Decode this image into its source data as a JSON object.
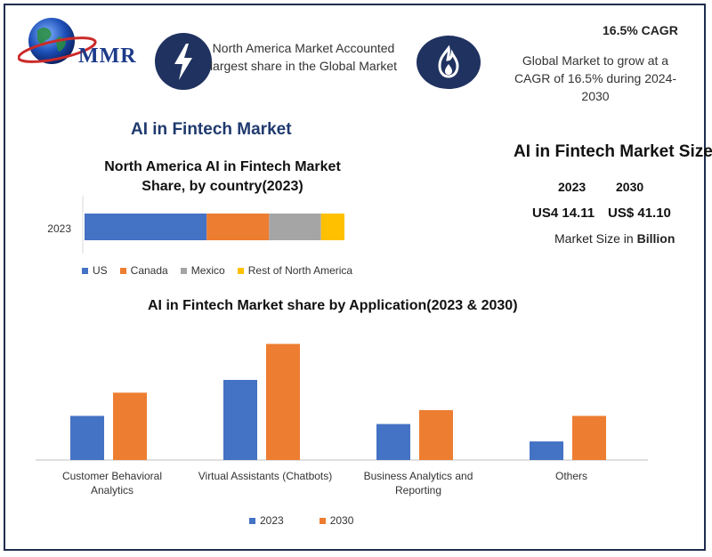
{
  "brand": {
    "logo_text": "MMR"
  },
  "header": {
    "left_text": "North America Market Accounted largest share in the Global Market",
    "cagr_label": "16.5% CAGR",
    "right_text": "Global Market to grow at a CAGR of 16.5% during 2024-2030"
  },
  "main_title": "AI in Fintech Market",
  "market_size": {
    "title": "AI in Fintech Market Size",
    "year_a": "2023",
    "year_b": "2030",
    "value_a": "US4 14.11",
    "value_b": "US$ 41.10",
    "note_prefix": "Market Size in ",
    "note_unit": "Billion"
  },
  "colors": {
    "navy": "#1f3260",
    "blue": "#4472c4",
    "orange": "#ed7d31",
    "gray": "#a5a5a5",
    "yellow": "#ffc000"
  },
  "chart_data": [
    {
      "type": "bar",
      "orientation": "horizontal-stacked",
      "title": "North America AI in Fintech Market Share, by country(2023)",
      "categories": [
        "2023"
      ],
      "series": [
        {
          "name": "US",
          "values": [
            47
          ],
          "color": "#4472c4"
        },
        {
          "name": "Canada",
          "values": [
            24
          ],
          "color": "#ed7d31"
        },
        {
          "name": "Mexico",
          "values": [
            20
          ],
          "color": "#a5a5a5"
        },
        {
          "name": "Rest of North America",
          "values": [
            9
          ],
          "color": "#ffc000"
        }
      ],
      "legend": "bottom"
    },
    {
      "type": "bar",
      "title": "AI in Fintech Market share by Application(2023 & 2030)",
      "categories": [
        "Customer Behavioral Analytics",
        "Virtual Assistants (Chatbots)",
        "Business Analytics and Reporting",
        "Others"
      ],
      "series": [
        {
          "name": "2023",
          "values": [
            3.8,
            6.9,
            3.1,
            1.6
          ],
          "color": "#4472c4"
        },
        {
          "name": "2030",
          "values": [
            5.8,
            10.0,
            4.3,
            3.8
          ],
          "color": "#ed7d31"
        }
      ],
      "ylim": [
        0,
        10.5
      ],
      "legend": "bottom"
    }
  ]
}
